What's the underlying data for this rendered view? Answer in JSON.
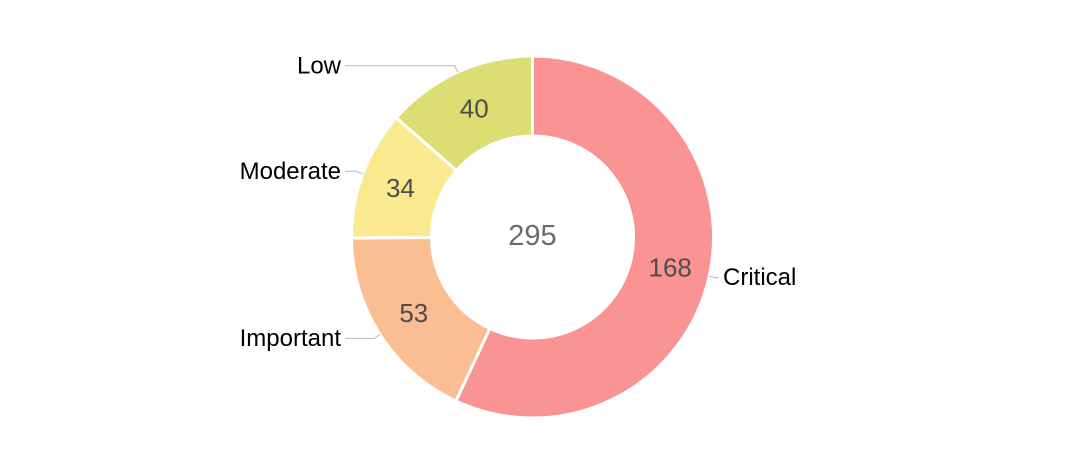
{
  "chart_data": {
    "type": "pie",
    "subtype": "donut",
    "title": "",
    "categories": [
      "Critical",
      "Important",
      "Moderate",
      "Low"
    ],
    "values": [
      168,
      53,
      34,
      40
    ],
    "colors": [
      "#FA9494",
      "#FBBD92",
      "#FAE98F",
      "#DCDE73"
    ],
    "center_total": "295",
    "start_angle_deg": 0,
    "direction": "clockwise",
    "legend_position": "none",
    "styles": {
      "background": "#FFFFFF",
      "slice_border_color": "#FFFFFF",
      "category_label_color": "#000000",
      "value_label_color": "#4D4D4D",
      "center_total_color": "#6B6B6B",
      "leader_line_color": "#B9B9B9"
    }
  }
}
